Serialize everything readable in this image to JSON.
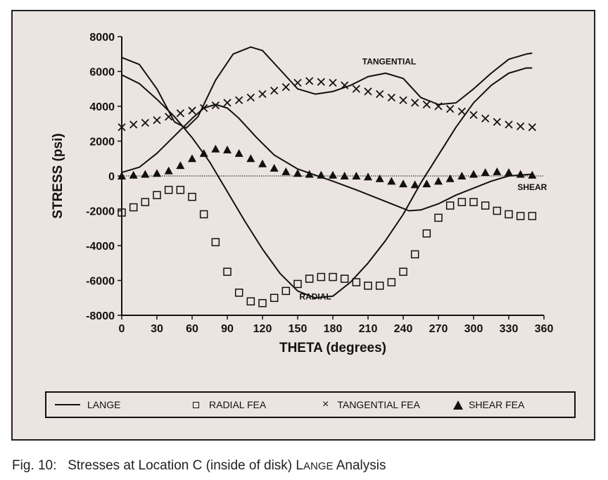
{
  "caption": {
    "prefix": "Fig. 10:",
    "text": "Stresses at Location C (inside of disk) ",
    "brand_first": "L",
    "brand_rest": "ANGE",
    "suffix": " Analysis"
  },
  "legend": [
    {
      "symbol": "line",
      "label": "LANGE"
    },
    {
      "symbol": "square",
      "label": "RADIAL FEA"
    },
    {
      "symbol": "x",
      "label": "TANGENTIAL FEA"
    },
    {
      "symbol": "triangle",
      "label": "SHEAR FEA"
    }
  ],
  "colors": {
    "panel": "#ece4e1",
    "ink": "#111111"
  },
  "chart_data": {
    "type": "line",
    "xlabel": "THETA (degrees)",
    "ylabel": "STRESS (psi)",
    "xlim": [
      0,
      360
    ],
    "ylim": [
      -8000,
      8000
    ],
    "x_ticks": [
      0,
      30,
      60,
      90,
      120,
      150,
      180,
      210,
      240,
      270,
      300,
      330,
      360
    ],
    "y_ticks": [
      8000,
      6000,
      4000,
      2000,
      0,
      -2000,
      -4000,
      -6000,
      -8000
    ],
    "grid": false,
    "zero_line": true,
    "annotations": [
      {
        "text": "TANGENTIAL",
        "x": 228,
        "y": 6400
      },
      {
        "text": "SHEAR",
        "x": 350,
        "y": -800
      },
      {
        "text": "RADIAL",
        "x": 165,
        "y": -7100
      }
    ],
    "series": [
      {
        "name": "LANGE",
        "role": "tangential",
        "style": "line",
        "x": [
          0,
          15,
          30,
          45,
          55,
          65,
          80,
          95,
          110,
          120,
          135,
          150,
          165,
          180,
          195,
          210,
          225,
          240,
          255,
          270,
          285,
          300,
          315,
          330,
          345,
          350
        ],
        "y": [
          6800,
          6400,
          5000,
          3100,
          2750,
          3400,
          5500,
          7000,
          7400,
          7200,
          6100,
          5000,
          4700,
          4850,
          5200,
          5700,
          5900,
          5600,
          4500,
          4100,
          4200,
          5000,
          5900,
          6700,
          7000,
          7050
        ]
      },
      {
        "name": "LANGE",
        "role": "radial",
        "style": "line",
        "x": [
          0,
          15,
          30,
          45,
          60,
          75,
          90,
          105,
          120,
          135,
          150,
          165,
          180,
          195,
          210,
          225,
          240,
          255,
          270,
          285,
          300,
          315,
          330,
          345,
          350
        ],
        "y": [
          5800,
          5300,
          4400,
          3400,
          2200,
          800,
          -900,
          -2600,
          -4200,
          -5600,
          -6600,
          -7000,
          -6900,
          -6100,
          -5000,
          -3700,
          -2200,
          -400,
          1200,
          2800,
          4200,
          5200,
          5900,
          6200,
          6200
        ]
      },
      {
        "name": "LANGE",
        "role": "shear",
        "style": "line",
        "x": [
          0,
          15,
          30,
          45,
          60,
          70,
          80,
          90,
          100,
          115,
          130,
          150,
          165,
          180,
          200,
          215,
          230,
          245,
          255,
          270,
          285,
          300,
          315,
          330,
          350
        ],
        "y": [
          200,
          500,
          1300,
          2300,
          3300,
          3900,
          4100,
          3900,
          3300,
          2200,
          1200,
          400,
          50,
          -300,
          -800,
          -1200,
          -1600,
          -2000,
          -1950,
          -1600,
          -1100,
          -700,
          -300,
          0,
          100
        ]
      },
      {
        "name": "RADIAL FEA",
        "style": "square",
        "x": [
          0,
          10,
          20,
          30,
          40,
          50,
          60,
          70,
          80,
          90,
          100,
          110,
          120,
          130,
          140,
          150,
          160,
          170,
          180,
          190,
          200,
          210,
          220,
          230,
          240,
          250,
          260,
          270,
          280,
          290,
          300,
          310,
          320,
          330,
          340,
          350
        ],
        "y": [
          -2100,
          -1800,
          -1500,
          -1100,
          -800,
          -800,
          -1200,
          -2200,
          -3800,
          -5500,
          -6700,
          -7200,
          -7300,
          -7000,
          -6600,
          -6200,
          -5900,
          -5800,
          -5800,
          -5900,
          -6100,
          -6300,
          -6300,
          -6100,
          -5500,
          -4500,
          -3300,
          -2400,
          -1700,
          -1500,
          -1500,
          -1700,
          -2000,
          -2200,
          -2300,
          -2300
        ]
      },
      {
        "name": "TANGENTIAL FEA",
        "style": "x",
        "x": [
          0,
          10,
          20,
          30,
          40,
          50,
          60,
          70,
          80,
          90,
          100,
          110,
          120,
          130,
          140,
          150,
          160,
          170,
          180,
          190,
          200,
          210,
          220,
          230,
          240,
          250,
          260,
          270,
          280,
          290,
          300,
          310,
          320,
          330,
          340,
          350
        ],
        "y": [
          2800,
          2950,
          3050,
          3200,
          3400,
          3600,
          3750,
          3900,
          4050,
          4200,
          4350,
          4500,
          4700,
          4900,
          5100,
          5350,
          5450,
          5400,
          5350,
          5200,
          5000,
          4850,
          4700,
          4500,
          4350,
          4200,
          4100,
          4000,
          3850,
          3700,
          3500,
          3300,
          3100,
          2950,
          2850,
          2800
        ]
      },
      {
        "name": "SHEAR FEA",
        "style": "triangle",
        "x": [
          0,
          10,
          20,
          30,
          40,
          50,
          60,
          70,
          80,
          90,
          100,
          110,
          120,
          130,
          140,
          150,
          160,
          170,
          180,
          190,
          200,
          210,
          220,
          230,
          240,
          250,
          260,
          270,
          280,
          290,
          300,
          310,
          320,
          330,
          340,
          350
        ],
        "y": [
          0,
          50,
          100,
          150,
          300,
          600,
          1000,
          1300,
          1550,
          1500,
          1300,
          1000,
          700,
          450,
          250,
          150,
          100,
          50,
          50,
          0,
          0,
          -50,
          -150,
          -300,
          -450,
          -500,
          -450,
          -300,
          -150,
          0,
          100,
          200,
          250,
          200,
          100,
          50
        ]
      }
    ]
  }
}
